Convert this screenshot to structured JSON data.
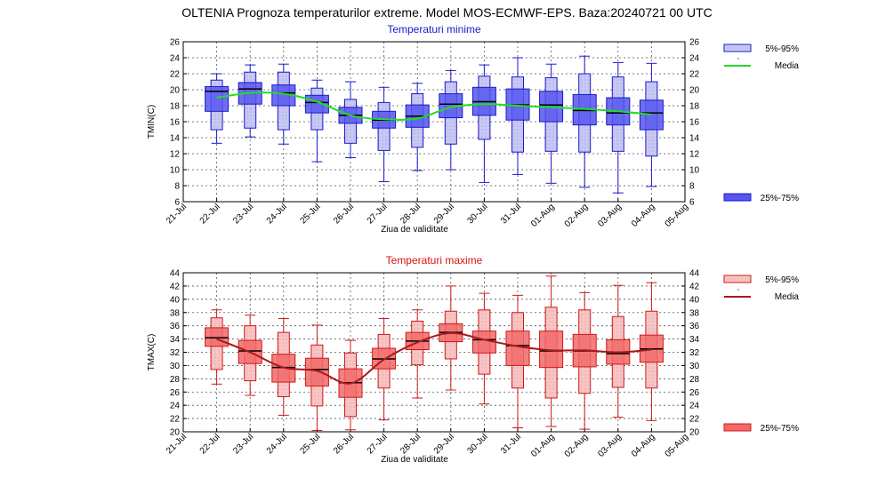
{
  "title": "OLTENIA  Prognoza temperaturilor extreme.  Model MOS-ECMWF-EPS. Baza:20240721 00 UTC",
  "chart_data": [
    {
      "type": "boxplot",
      "title": "Temperaturi minime",
      "title_color": "#1a1acc",
      "xlabel": "Ziua de validitate",
      "ylabel": "TMIN(C)",
      "ylim": [
        6,
        26
      ],
      "yticks": [
        6,
        8,
        10,
        12,
        14,
        16,
        18,
        20,
        22,
        24,
        26
      ],
      "xticks": [
        "21-Jul",
        "22-Jul",
        "23-Jul",
        "24-Jul",
        "25-Jul",
        "26-Jul",
        "27-Jul",
        "28-Jul",
        "29-Jul",
        "30-Jul",
        "31-Jul",
        "01-Aug",
        "02-Aug",
        "03-Aug",
        "04-Aug",
        "05-Aug"
      ],
      "grid": true,
      "legend_position": "right",
      "colors": {
        "edge": "#1a1acc",
        "inner": "#5555ee",
        "outer": "#c8c8f4",
        "median": "#000000",
        "mean_line": "#22dd22"
      },
      "legend": {
        "outer_label": "5%-95%",
        "mean_label": "Media",
        "inner_label": "25%-75%"
      },
      "boxes": [
        {
          "x": "22-Jul",
          "min": 13.3,
          "p5": 15.0,
          "p25": 17.3,
          "median": 19.8,
          "p75": 20.4,
          "p95": 21.2,
          "max": 22.0,
          "mean": 19.0
        },
        {
          "x": "23-Jul",
          "min": 14.1,
          "p5": 15.2,
          "p25": 18.2,
          "median": 20.1,
          "p75": 20.9,
          "p95": 22.2,
          "max": 23.1,
          "mean": 19.6
        },
        {
          "x": "24-Jul",
          "min": 13.2,
          "p5": 15.0,
          "p25": 18.0,
          "median": 19.6,
          "p75": 20.6,
          "p95": 22.2,
          "max": 23.2,
          "mean": 19.5
        },
        {
          "x": "25-Jul",
          "min": 11.0,
          "p5": 15.0,
          "p25": 17.1,
          "median": 18.4,
          "p75": 19.3,
          "p95": 20.2,
          "max": 21.2,
          "mean": 18.5
        },
        {
          "x": "26-Jul",
          "min": 11.5,
          "p5": 13.3,
          "p25": 15.8,
          "median": 16.8,
          "p75": 17.8,
          "p95": 18.8,
          "max": 21.0,
          "mean": 16.8
        },
        {
          "x": "27-Jul",
          "min": 8.5,
          "p5": 12.4,
          "p25": 15.2,
          "median": 16.2,
          "p75": 17.3,
          "p95": 18.4,
          "max": 20.3,
          "mean": 16.3
        },
        {
          "x": "28-Jul",
          "min": 9.9,
          "p5": 12.8,
          "p25": 15.3,
          "median": 16.7,
          "p75": 18.1,
          "p95": 19.5,
          "max": 20.8,
          "mean": 16.4
        },
        {
          "x": "29-Jul",
          "min": 10.0,
          "p5": 13.2,
          "p25": 16.5,
          "median": 18.2,
          "p75": 19.5,
          "p95": 21.0,
          "max": 22.4,
          "mean": 17.8
        },
        {
          "x": "30-Jul",
          "min": 8.4,
          "p5": 13.8,
          "p25": 16.8,
          "median": 18.5,
          "p75": 20.3,
          "p95": 21.7,
          "max": 23.1,
          "mean": 18.2
        },
        {
          "x": "31-Jul",
          "min": 9.4,
          "p5": 12.2,
          "p25": 16.2,
          "median": 18.1,
          "p75": 20.1,
          "p95": 21.6,
          "max": 24.0,
          "mean": 18.0
        },
        {
          "x": "01-Aug",
          "min": 8.3,
          "p5": 12.3,
          "p25": 16.0,
          "median": 18.1,
          "p75": 19.8,
          "p95": 21.5,
          "max": 23.2,
          "mean": 17.8
        },
        {
          "x": "02-Aug",
          "min": 7.8,
          "p5": 12.2,
          "p25": 15.6,
          "median": 17.4,
          "p75": 19.4,
          "p95": 22.0,
          "max": 24.2,
          "mean": 17.6
        },
        {
          "x": "03-Aug",
          "min": 7.1,
          "p5": 12.3,
          "p25": 15.6,
          "median": 17.1,
          "p75": 19.0,
          "p95": 21.6,
          "max": 23.4,
          "mean": 17.3
        },
        {
          "x": "04-Aug",
          "min": 7.9,
          "p5": 11.7,
          "p25": 15.0,
          "median": 17.1,
          "p75": 18.7,
          "p95": 21.0,
          "max": 23.3,
          "mean": 16.9
        }
      ]
    },
    {
      "type": "boxplot",
      "title": "Temperaturi maxime",
      "title_color": "#e01010",
      "xlabel": "Ziua de validitate",
      "ylabel": "TMAX(C)",
      "ylim": [
        20,
        44
      ],
      "yticks": [
        20,
        22,
        24,
        26,
        28,
        30,
        32,
        34,
        36,
        38,
        40,
        42,
        44
      ],
      "xticks": [
        "21-Jul",
        "22-Jul",
        "23-Jul",
        "24-Jul",
        "25-Jul",
        "26-Jul",
        "27-Jul",
        "28-Jul",
        "29-Jul",
        "30-Jul",
        "31-Jul",
        "01-Aug",
        "02-Aug",
        "03-Aug",
        "04-Aug",
        "05-Aug"
      ],
      "grid": true,
      "legend_position": "right",
      "colors": {
        "edge": "#d01818",
        "inner": "#f26868",
        "outer": "#f8c4c4",
        "median": "#000000",
        "mean_line": "#a81a1a"
      },
      "legend": {
        "outer_label": "5%-95%",
        "mean_label": "Media",
        "inner_label": "25%-75%"
      },
      "boxes": [
        {
          "x": "22-Jul",
          "min": 27.2,
          "p5": 29.4,
          "p25": 32.9,
          "median": 34.2,
          "p75": 35.7,
          "p95": 37.2,
          "max": 38.4,
          "mean": 34.0
        },
        {
          "x": "23-Jul",
          "min": 25.5,
          "p5": 27.7,
          "p25": 30.3,
          "median": 32.2,
          "p75": 33.8,
          "p95": 36.0,
          "max": 37.6,
          "mean": 32.0
        },
        {
          "x": "24-Jul",
          "min": 22.5,
          "p5": 25.3,
          "p25": 27.5,
          "median": 29.7,
          "p75": 31.7,
          "p95": 35.0,
          "max": 37.1,
          "mean": 29.7
        },
        {
          "x": "25-Jul",
          "min": 20.2,
          "p5": 23.9,
          "p25": 26.9,
          "median": 29.4,
          "p75": 31.1,
          "p95": 33.1,
          "max": 36.1,
          "mean": 29.2
        },
        {
          "x": "26-Jul",
          "min": 20.3,
          "p5": 22.3,
          "p25": 25.2,
          "median": 27.4,
          "p75": 29.5,
          "p95": 31.9,
          "max": 33.8,
          "mean": 27.3
        },
        {
          "x": "27-Jul",
          "min": 21.8,
          "p5": 26.6,
          "p25": 29.5,
          "median": 31.0,
          "p75": 32.6,
          "p95": 34.7,
          "max": 37.1,
          "mean": 30.9
        },
        {
          "x": "28-Jul",
          "min": 25.1,
          "p5": 30.1,
          "p25": 32.4,
          "median": 33.7,
          "p75": 35.0,
          "p95": 36.7,
          "max": 38.4,
          "mean": 33.5
        },
        {
          "x": "29-Jul",
          "min": 26.3,
          "p5": 31.0,
          "p25": 33.6,
          "median": 35.0,
          "p75": 36.3,
          "p95": 38.2,
          "max": 42.0,
          "mean": 34.9
        },
        {
          "x": "30-Jul",
          "min": 24.2,
          "p5": 28.7,
          "p25": 31.9,
          "median": 33.9,
          "p75": 35.2,
          "p95": 38.4,
          "max": 40.9,
          "mean": 33.9
        },
        {
          "x": "31-Jul",
          "min": 20.6,
          "p5": 26.6,
          "p25": 30.0,
          "median": 33.0,
          "p75": 35.2,
          "p95": 38.0,
          "max": 40.6,
          "mean": 32.9
        },
        {
          "x": "01-Aug",
          "min": 20.8,
          "p5": 25.1,
          "p25": 29.7,
          "median": 32.2,
          "p75": 35.2,
          "p95": 38.8,
          "max": 43.5,
          "mean": 32.3
        },
        {
          "x": "02-Aug",
          "min": 20.4,
          "p5": 25.8,
          "p25": 29.8,
          "median": 32.2,
          "p75": 34.7,
          "p95": 38.4,
          "max": 41.0,
          "mean": 32.3
        },
        {
          "x": "03-Aug",
          "min": 22.2,
          "p5": 26.7,
          "p25": 30.2,
          "median": 31.8,
          "p75": 33.9,
          "p95": 37.4,
          "max": 42.1,
          "mean": 32.0
        },
        {
          "x": "04-Aug",
          "min": 21.7,
          "p5": 26.6,
          "p25": 30.5,
          "median": 32.5,
          "p75": 34.6,
          "p95": 38.2,
          "max": 42.5,
          "mean": 32.4
        }
      ]
    }
  ]
}
